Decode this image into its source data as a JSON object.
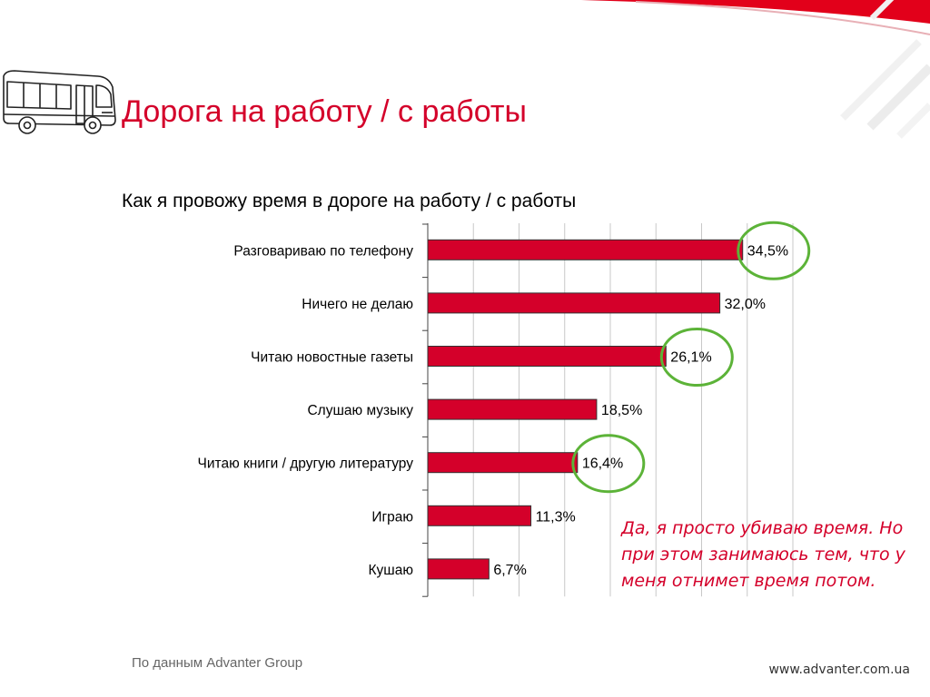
{
  "header": {
    "title": "Дорога на работу / с работы",
    "logo_icon": "bus-icon"
  },
  "chart_data": {
    "type": "bar",
    "orientation": "horizontal",
    "title": "Как я провожу время в дороге на работу / с работы",
    "categories": [
      "Разговариваю по телефону",
      "Ничего не делаю",
      "Читаю новостные газеты",
      "Слушаю музыку",
      "Читаю книги / другую литературу",
      "Играю",
      "Кушаю"
    ],
    "values": [
      34.5,
      32.0,
      26.1,
      18.5,
      16.4,
      11.3,
      6.7
    ],
    "value_labels": [
      "34,5%",
      "32,0%",
      "26,1%",
      "18,5%",
      "16,4%",
      "11,3%",
      "6,7%"
    ],
    "highlighted": [
      "34,5%",
      "26,1%",
      "16,4%"
    ],
    "xlim": [
      0,
      40
    ],
    "grid": true,
    "bar_color": "#d4002a",
    "highlight_color": "#5cb338"
  },
  "note": {
    "text": "Да, я просто убиваю время. Но при этом занимаюсь тем, что у меня отнимет время потом."
  },
  "footer": {
    "source": "По данным Advanter Group",
    "website": "www.advanter.com.ua"
  }
}
